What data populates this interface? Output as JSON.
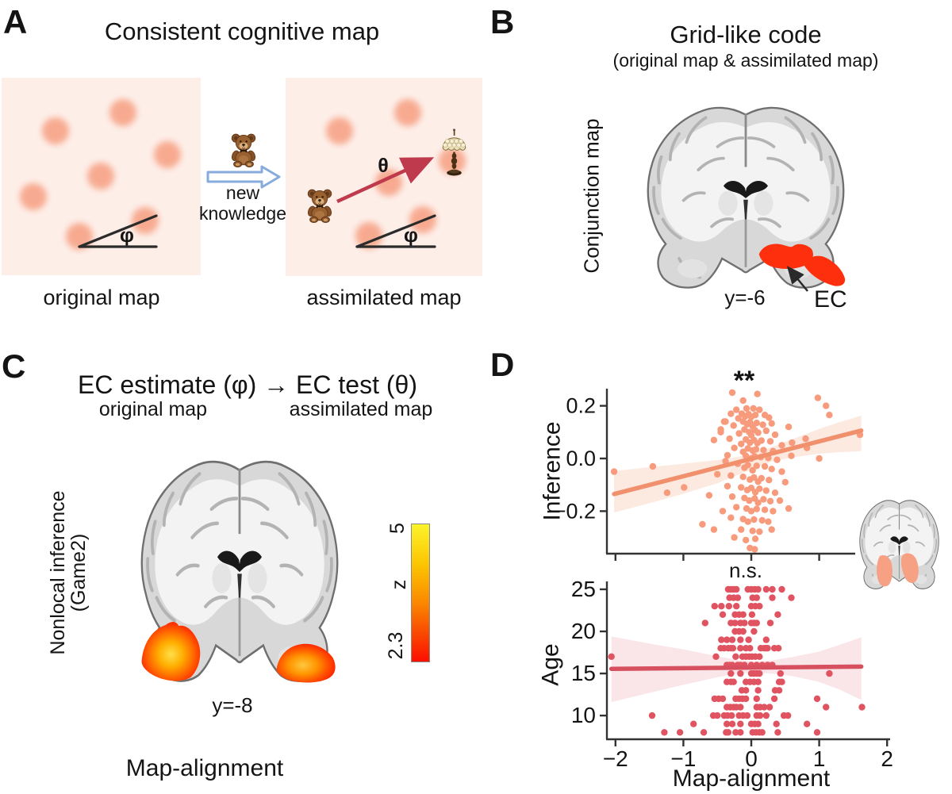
{
  "figure_labels": {
    "A": "A",
    "B": "B",
    "C": "C",
    "D": "D"
  },
  "panel_a": {
    "title": "Consistent cognitive map",
    "caption_left": "original map",
    "caption_right": "assimilated map",
    "arrow_text_line1": "new",
    "arrow_text_line2": "knowledge",
    "phi": "φ",
    "theta": "θ",
    "square_color": "#fdeee8",
    "dot_color": "#f7a78c",
    "left_dots": [
      [
        155,
        142
      ],
      [
        70,
        165
      ],
      [
        211,
        195
      ],
      [
        127,
        222
      ],
      [
        42,
        248
      ],
      [
        183,
        278
      ],
      [
        100,
        298
      ]
    ],
    "right_dots": [
      [
        428,
        165
      ],
      [
        514,
        142
      ],
      [
        570,
        203
      ],
      [
        490,
        230
      ],
      [
        465,
        297
      ],
      [
        533,
        277
      ]
    ]
  },
  "panel_b": {
    "title": "Grid-like code",
    "subtitle": "(original map & assimilated map)",
    "side_label": "Conjunction map",
    "slice_label": "y=-6",
    "region_label": "EC",
    "activation_color": "#fe2f0c"
  },
  "panel_c": {
    "title": "EC estimate (φ) → EC test (θ)",
    "subtitle_left": "original map",
    "subtitle_right": "assimilated map",
    "side_label_line1": "Nonlocal inference",
    "side_label_line2": "(Game2)",
    "slice_label": "y=-8",
    "bottom_label": "Map-alignment",
    "colorbar": {
      "max": "5",
      "axis": "z",
      "min": "2.3",
      "top_color": "#fcf32b",
      "bottom_color": "#fd0f00"
    }
  },
  "panel_d": {
    "top_sig": "**",
    "top_ylabel": "Inference",
    "bottom_sig": "n.s.",
    "bottom_ylabel": "Age",
    "xlabel": "Map-alignment",
    "inset_activation_color": "#f6a184"
  },
  "chart_data": [
    {
      "type": "scatter",
      "title": "** (significant)",
      "ylabel": "Inference",
      "xlabel": "",
      "xlim": [
        -2.12,
        1.9
      ],
      "ylim": [
        -0.365,
        0.265
      ],
      "x_ticks": [
        -2,
        -1,
        0,
        1
      ],
      "x_tick_labels": [],
      "y_ticks": [
        0.2,
        0.0,
        -0.2
      ],
      "y_tick_labels": [
        "0.2",
        "0.0",
        "−0.2"
      ],
      "point_color": "#f79b7c",
      "line_color": "#f0906d",
      "band_color": "#fbe3d8",
      "regression": {
        "x": [
          -2.02,
          1.62
        ],
        "y": [
          -0.135,
          0.106
        ]
      },
      "band": [
        [
          -2.02,
          -0.205,
          -0.048
        ],
        [
          -1.5,
          -0.17,
          -0.033
        ],
        [
          -1.0,
          -0.134,
          -0.02
        ],
        [
          -0.5,
          -0.094,
          -0.006
        ],
        [
          -0.2,
          -0.063,
          0.006
        ],
        [
          0,
          -0.042,
          0.018
        ],
        [
          0.3,
          -0.012,
          0.043
        ],
        [
          0.6,
          0.004,
          0.073
        ],
        [
          1.0,
          0.018,
          0.112
        ],
        [
          1.3,
          0.024,
          0.138
        ],
        [
          1.62,
          0.028,
          0.163
        ]
      ],
      "points": [
        [
          -2.02,
          -0.05
        ],
        [
          -1.45,
          -0.03
        ],
        [
          -1.24,
          -0.13
        ],
        [
          -0.99,
          -0.11
        ],
        [
          -0.72,
          -0.25
        ],
        [
          -0.62,
          -0.14
        ],
        [
          -0.55,
          0.07
        ],
        [
          -0.5,
          -0.06
        ],
        [
          -0.45,
          0.1
        ],
        [
          -0.42,
          -0.2
        ],
        [
          -0.4,
          0.14
        ],
        [
          -0.38,
          -0.01
        ],
        [
          -0.28,
          0.25
        ],
        [
          0.09,
          0.245
        ],
        [
          -0.12,
          0.22
        ],
        [
          -0.07,
          0.19
        ],
        [
          0.03,
          0.19
        ],
        [
          -0.22,
          0.185
        ],
        [
          0.12,
          0.185
        ],
        [
          -0.3,
          0.17
        ],
        [
          -0.14,
          0.17
        ],
        [
          -0.04,
          0.168
        ],
        [
          0.06,
          0.165
        ],
        [
          0.2,
          0.165
        ],
        [
          -0.09,
          0.16
        ],
        [
          0.0,
          0.158
        ],
        [
          0.26,
          0.155
        ],
        [
          -0.19,
          0.152
        ],
        [
          -0.38,
          0.14
        ],
        [
          -0.12,
          0.14
        ],
        [
          -0.02,
          0.138
        ],
        [
          0.08,
          0.135
        ],
        [
          0.3,
          0.133
        ],
        [
          -0.06,
          0.13
        ],
        [
          0.17,
          0.128
        ],
        [
          -0.26,
          0.125
        ],
        [
          0.02,
          0.122
        ],
        [
          0.55,
          0.12
        ],
        [
          -0.45,
          0.11
        ],
        [
          -0.1,
          0.11
        ],
        [
          0.05,
          0.108
        ],
        [
          0.22,
          0.105
        ],
        [
          -0.03,
          0.1
        ],
        [
          0.1,
          0.098
        ],
        [
          -0.18,
          0.095
        ],
        [
          0.35,
          0.09
        ],
        [
          0.0,
          0.088
        ],
        [
          -0.32,
          0.075
        ],
        [
          -0.08,
          0.072
        ],
        [
          0.04,
          0.07
        ],
        [
          0.15,
          0.068
        ],
        [
          0.28,
          0.065
        ],
        [
          -0.02,
          0.06
        ],
        [
          0.09,
          0.058
        ],
        [
          -0.15,
          0.055
        ],
        [
          0.45,
          0.05
        ],
        [
          0.6,
          0.06
        ],
        [
          0.8,
          0.075
        ],
        [
          -0.25,
          0.04
        ],
        [
          -0.05,
          0.038
        ],
        [
          0.07,
          0.035
        ],
        [
          0.18,
          0.032
        ],
        [
          0.02,
          0.03
        ],
        [
          0.32,
          0.028
        ],
        [
          -0.12,
          0.025
        ],
        [
          0.82,
          0.04
        ],
        [
          -0.35,
          0.012
        ],
        [
          -0.08,
          0.01
        ],
        [
          0.05,
          0.008
        ],
        [
          0.14,
          0.005
        ],
        [
          0.25,
          0.002
        ],
        [
          0.0,
          0.0
        ],
        [
          0.38,
          -0.005
        ],
        [
          0.59,
          0.01
        ],
        [
          1.0,
          0.0
        ],
        [
          -0.2,
          -0.02
        ],
        [
          -0.05,
          -0.025
        ],
        [
          0.08,
          -0.028
        ],
        [
          0.2,
          -0.03
        ],
        [
          -0.1,
          -0.035
        ],
        [
          0.3,
          -0.04
        ],
        [
          0.02,
          -0.045
        ],
        [
          0.45,
          -0.05
        ],
        [
          -0.3,
          -0.065
        ],
        [
          -0.12,
          -0.07
        ],
        [
          0.04,
          -0.072
        ],
        [
          0.15,
          -0.075
        ],
        [
          -0.02,
          -0.08
        ],
        [
          0.26,
          -0.082
        ],
        [
          0.1,
          -0.088
        ],
        [
          0.5,
          -0.09
        ],
        [
          -0.35,
          -0.105
        ],
        [
          -0.15,
          -0.11
        ],
        [
          0.0,
          -0.112
        ],
        [
          0.12,
          -0.115
        ],
        [
          -0.06,
          -0.12
        ],
        [
          0.22,
          -0.122
        ],
        [
          0.06,
          -0.128
        ],
        [
          0.35,
          -0.13
        ],
        [
          -0.28,
          -0.145
        ],
        [
          -0.1,
          -0.15
        ],
        [
          0.05,
          -0.152
        ],
        [
          0.18,
          -0.155
        ],
        [
          -0.03,
          -0.16
        ],
        [
          0.28,
          -0.162
        ],
        [
          0.1,
          -0.168
        ],
        [
          0.42,
          -0.16
        ],
        [
          -0.22,
          -0.185
        ],
        [
          -0.07,
          -0.19
        ],
        [
          0.08,
          -0.192
        ],
        [
          0.2,
          -0.195
        ],
        [
          0.0,
          -0.2
        ],
        [
          0.32,
          -0.2
        ],
        [
          0.55,
          -0.19
        ],
        [
          -0.3,
          -0.225
        ],
        [
          -0.12,
          -0.23
        ],
        [
          0.04,
          -0.232
        ],
        [
          0.16,
          -0.235
        ],
        [
          -0.05,
          -0.24
        ],
        [
          0.25,
          -0.24
        ],
        [
          -0.55,
          -0.27
        ],
        [
          -0.15,
          -0.27
        ],
        [
          0.02,
          -0.275
        ],
        [
          0.12,
          -0.278
        ],
        [
          0.3,
          -0.27
        ],
        [
          -0.25,
          -0.3
        ],
        [
          0.06,
          -0.305
        ],
        [
          -0.08,
          -0.31
        ],
        [
          -0.02,
          -0.34
        ],
        [
          0.05,
          -0.345
        ],
        [
          0.98,
          0.23
        ],
        [
          1.1,
          0.2
        ],
        [
          1.15,
          0.165
        ],
        [
          1.6,
          0.09
        ]
      ]
    },
    {
      "type": "scatter",
      "title": "n.s. (not significant)",
      "ylabel": "Age",
      "xlabel": "Map-alignment",
      "xlim": [
        -2.12,
        2.05
      ],
      "ylim": [
        7.2,
        26
      ],
      "x_ticks": [
        -2,
        -1,
        0,
        1,
        2
      ],
      "x_tick_labels": [
        "−2",
        "−1",
        "0",
        "1",
        "2"
      ],
      "y_ticks": [
        25,
        20,
        15,
        10
      ],
      "y_tick_labels": [
        "25",
        "20",
        "15",
        "10"
      ],
      "point_color": "#e05360",
      "line_color": "#d6505f",
      "band_color": "#f9dfe4",
      "regression": {
        "x": [
          -2.06,
          1.62
        ],
        "y": [
          15.55,
          15.82
        ]
      },
      "band": [
        [
          -2.06,
          11.6,
          19.4
        ],
        [
          -1.5,
          12.7,
          18.55
        ],
        [
          -1.0,
          13.65,
          17.85
        ],
        [
          -0.5,
          14.55,
          17.05
        ],
        [
          -0.2,
          15.0,
          16.6
        ],
        [
          0.05,
          15.1,
          16.45
        ],
        [
          0.3,
          15.0,
          16.55
        ],
        [
          0.6,
          14.7,
          16.95
        ],
        [
          1.0,
          14.0,
          17.6
        ],
        [
          1.3,
          13.1,
          18.4
        ],
        [
          1.62,
          11.85,
          19.3
        ]
      ],
      "age_rows": {
        "25": [
          -0.34,
          -0.3,
          -0.26,
          -0.22,
          -0.05,
          0.0,
          0.05,
          0.1,
          0.22,
          0.31,
          0.45
        ],
        "24": [
          -0.32,
          -0.26,
          -0.2,
          0.02,
          0.08,
          0.31,
          0.59
        ],
        "23": [
          -0.54,
          -0.44,
          -0.33,
          -0.22,
          0.0,
          0.06,
          0.12
        ],
        "22": [
          -0.42,
          -0.24,
          -0.18,
          -0.12,
          0.01,
          0.39
        ],
        "21": [
          -0.68,
          -0.3,
          -0.24,
          -0.16,
          -0.1,
          0.0,
          0.04,
          0.08,
          0.28
        ],
        "20": [
          -0.24,
          -0.18,
          -0.12,
          0.04
        ],
        "19": [
          -0.44,
          -0.36,
          -0.28,
          -0.16,
          -0.04,
          0.22
        ],
        "18": [
          -0.45,
          -0.4,
          -0.34,
          -0.3,
          -0.27,
          -0.16,
          -0.08,
          -0.02,
          0.14,
          0.19,
          0.22,
          0.24,
          0.34,
          0.4
        ],
        "17": [
          -2.06,
          -0.52,
          -0.23,
          -0.13,
          -0.08,
          -0.03,
          0.01,
          0.06,
          0.12
        ],
        "16": [
          -0.36,
          -0.32,
          -0.28,
          -0.2,
          -0.16,
          -0.1,
          0.0,
          0.08,
          0.16,
          0.24,
          0.31
        ],
        "15": [
          -0.3,
          -0.16,
          0.0,
          0.04,
          0.08,
          0.12,
          0.43,
          1.15
        ],
        "14": [
          -0.36,
          -0.3,
          -0.26,
          -0.08,
          -0.02,
          0.04,
          0.1,
          0.41,
          0.45
        ],
        "13": [
          -0.14,
          -0.08,
          0.1,
          0.35,
          0.41
        ],
        "12": [
          -0.54,
          -0.48,
          -0.42,
          -0.23,
          -0.18,
          -0.13,
          -0.08,
          0.08,
          0.34,
          0.97
        ],
        "11": [
          -0.36,
          -0.31,
          -0.26,
          -0.22,
          -0.16,
          0.08,
          0.13,
          0.19,
          0.27,
          1.1,
          1.63
        ],
        "10": [
          -1.46,
          -0.56,
          -0.5,
          -0.4,
          -0.35,
          -0.29,
          -0.18,
          -0.12,
          -0.06,
          0.08,
          0.13,
          0.22,
          0.48,
          0.54
        ],
        "9": [
          -0.85,
          -0.36,
          -0.28,
          -0.16,
          0.0,
          0.05,
          0.1,
          0.37,
          0.82
        ],
        "8": [
          -1.28,
          -1.05,
          -0.7,
          -0.37,
          -0.34,
          -0.23,
          -0.16,
          0.02,
          0.07,
          0.12,
          0.16,
          0.39,
          0.97
        ]
      }
    }
  ]
}
